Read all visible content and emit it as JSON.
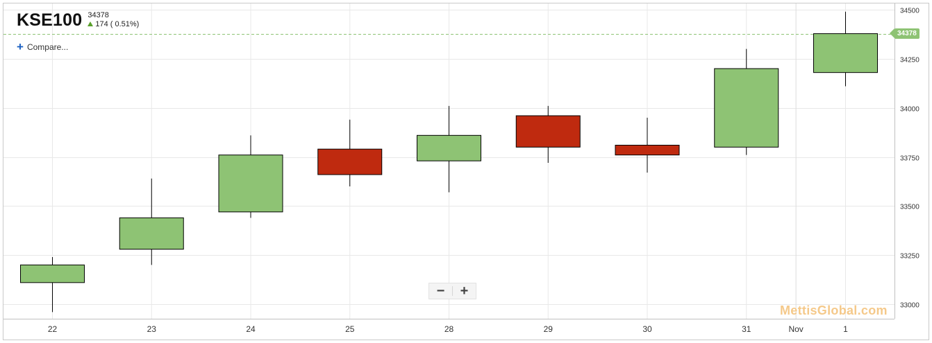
{
  "header": {
    "symbol": "KSE100",
    "last_value": "34378",
    "change_text": "174 ( 0.51%)"
  },
  "controls": {
    "compare_label": "Compare...",
    "zoom_out_label": "−",
    "zoom_in_label": "+"
  },
  "watermark": "MettisGlobal.com",
  "last_price_tag": "34378",
  "colors": {
    "up": "#8ec374",
    "down": "#bf2a0f",
    "grid": "#e8e8e8",
    "last_price_line": "#8ec374",
    "change_arrow": "#5aa02c"
  },
  "icons": {
    "change_direction": "up-arrow-icon",
    "compare": "plus-icon",
    "zoom_out": "minus-icon",
    "zoom_in": "plus-icon"
  },
  "chart_data": {
    "type": "candlestick",
    "categories": [
      "22",
      "23",
      "24",
      "25",
      "28",
      "29",
      "30",
      "31",
      "1"
    ],
    "month_marker": {
      "label": "Nov",
      "before_category": "1"
    },
    "candles": [
      {
        "x": "22",
        "open": 33110,
        "high": 33240,
        "low": 32960,
        "close": 33200
      },
      {
        "x": "23",
        "open": 33280,
        "high": 33640,
        "low": 33200,
        "close": 33440
      },
      {
        "x": "24",
        "open": 33470,
        "high": 33860,
        "low": 33440,
        "close": 33760
      },
      {
        "x": "25",
        "open": 33790,
        "high": 33940,
        "low": 33600,
        "close": 33660
      },
      {
        "x": "28",
        "open": 33730,
        "high": 34010,
        "low": 33570,
        "close": 33860
      },
      {
        "x": "29",
        "open": 33960,
        "high": 34010,
        "low": 33720,
        "close": 33800
      },
      {
        "x": "30",
        "open": 33810,
        "high": 33950,
        "low": 33670,
        "close": 33760
      },
      {
        "x": "31",
        "open": 33800,
        "high": 34300,
        "low": 33760,
        "close": 34200
      },
      {
        "x": "1",
        "open": 34180,
        "high": 34490,
        "low": 34110,
        "close": 34378
      }
    ],
    "y_ticks": [
      33000,
      33250,
      33500,
      33750,
      34000,
      34250,
      34500
    ],
    "ylim": [
      32960,
      34510
    ],
    "last_price": 34378,
    "grid": true,
    "title": "",
    "xlabel": "",
    "ylabel": ""
  }
}
